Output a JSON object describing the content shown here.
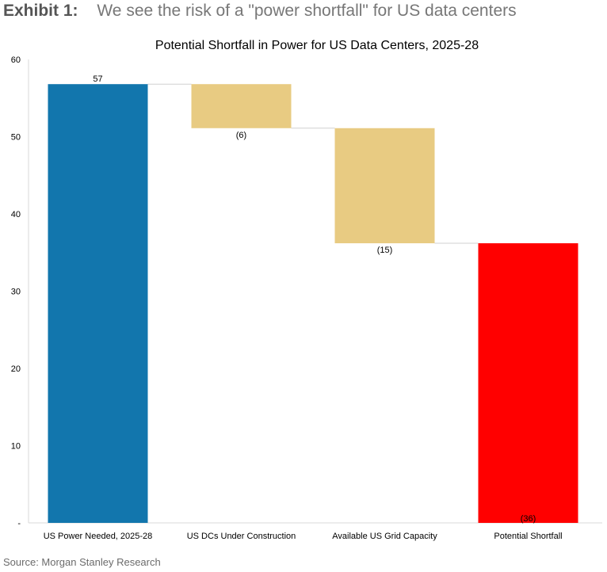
{
  "exhibit": {
    "label": "Exhibit 1:",
    "headline": "We see the risk of a \"power shortfall\" for US data centers"
  },
  "source": "Source: Morgan Stanley Research",
  "chart_data": {
    "type": "bar",
    "subtype": "waterfall",
    "title": "Potential Shortfall in Power for US Data Centers, 2025-28",
    "categories": [
      "US Power Needed, 2025-28",
      "US DCs Under Construction",
      "Available US Grid Capacity",
      "Potential Shortfall"
    ],
    "values": [
      57,
      -6,
      -15,
      -36
    ],
    "bar_start": [
      0,
      56.8,
      51.1,
      0
    ],
    "bar_end": [
      56.8,
      51.1,
      36.2,
      36.2
    ],
    "data_labels": [
      "57",
      "(6)",
      "(15)",
      "(36)"
    ],
    "colors": [
      "#1276ad",
      "#e8cb82",
      "#e8cb82",
      "#ff0000"
    ],
    "ylim": [
      0,
      60
    ],
    "yticks": [
      0,
      10,
      20,
      30,
      40,
      50,
      60
    ],
    "ytick_labels": [
      "-",
      "10",
      "20",
      "30",
      "40",
      "50",
      "60"
    ],
    "xlabel": "",
    "ylabel": "",
    "grid": false,
    "legend": "none"
  }
}
